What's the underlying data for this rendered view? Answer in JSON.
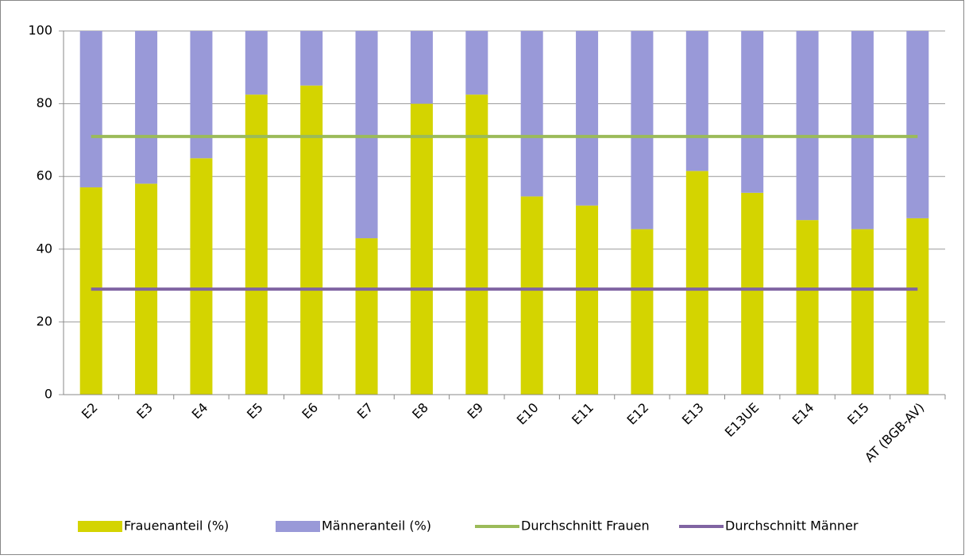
{
  "chart_data": {
    "type": "bar",
    "stacked": true,
    "categories": [
      "E2",
      "E3",
      "E4",
      "E5",
      "E6",
      "E7",
      "E8",
      "E9",
      "E10",
      "E11",
      "E12",
      "E13",
      "E13UE",
      "E14",
      "E15",
      "AT (BGB-AV)"
    ],
    "series": [
      {
        "name": "Frauenanteil (%)",
        "type": "bar",
        "color": "#d4d400",
        "values": [
          57,
          58,
          65,
          82.5,
          85,
          43,
          80,
          82.5,
          54.5,
          52,
          45.5,
          61.5,
          55.5,
          48,
          45.5,
          48.5
        ]
      },
      {
        "name": "Männeranteil (%)",
        "type": "bar",
        "color": "#9999d8",
        "values": [
          43,
          42,
          35,
          17.5,
          15,
          57,
          20,
          17.5,
          45.5,
          48,
          54.5,
          38.5,
          44.5,
          52,
          54.5,
          51.5
        ]
      },
      {
        "name": "Durchschnitt Frauen",
        "type": "line",
        "color": "#9bbb59",
        "values": [
          71,
          71,
          71,
          71,
          71,
          71,
          71,
          71,
          71,
          71,
          71,
          71,
          71,
          71,
          71,
          71
        ]
      },
      {
        "name": "Durchschnitt Männer",
        "type": "line",
        "color": "#8064a2",
        "values": [
          29,
          29,
          29,
          29,
          29,
          29,
          29,
          29,
          29,
          29,
          29,
          29,
          29,
          29,
          29,
          29
        ]
      }
    ],
    "ylim": [
      0,
      100
    ],
    "yticks": [
      0,
      20,
      40,
      60,
      80,
      100
    ],
    "grid": true,
    "legend": "bottom"
  }
}
